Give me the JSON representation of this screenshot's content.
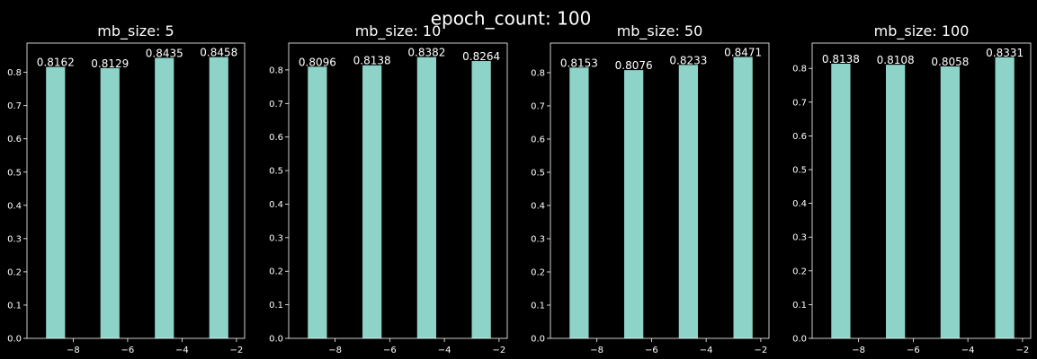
{
  "chart_data": {
    "suptitle": "epoch_count: 100",
    "colors": {
      "background": "#000000",
      "bar": "#8dd3c7",
      "axes": "#ffffff",
      "text": "#ffffff"
    },
    "panels": [
      {
        "type": "bar",
        "title": "mb_size: 5",
        "x": [
          -9,
          -7,
          -5,
          -3
        ],
        "values": [
          0.8162,
          0.8129,
          0.8435,
          0.8458
        ],
        "labels": [
          "0.8162",
          "0.8129",
          "0.8435",
          "0.8458"
        ],
        "xlim": [
          -9.7,
          -1.7
        ],
        "ylim": [
          0,
          0.888
        ],
        "xticks": [
          -8,
          -6,
          -4,
          -2
        ],
        "xtick_labels": [
          "−8",
          "−6",
          "−4",
          "−2"
        ],
        "yticks": [
          0,
          0.1,
          0.2,
          0.3,
          0.4,
          0.5,
          0.6,
          0.7,
          0.8
        ],
        "ytick_labels": [
          "0.0",
          "0.1",
          "0.2",
          "0.3",
          "0.4",
          "0.5",
          "0.6",
          "0.7",
          "0.8"
        ]
      },
      {
        "type": "bar",
        "title": "mb_size: 10",
        "x": [
          -9,
          -7,
          -5,
          -3
        ],
        "values": [
          0.8096,
          0.8138,
          0.8382,
          0.8264
        ],
        "labels": [
          "0.8096",
          "0.8138",
          "0.8382",
          "0.8264"
        ],
        "xlim": [
          -9.7,
          -1.7
        ],
        "ylim": [
          0,
          0.88
        ],
        "xticks": [
          -8,
          -6,
          -4,
          -2
        ],
        "xtick_labels": [
          "−8",
          "−6",
          "−4",
          "−2"
        ],
        "yticks": [
          0,
          0.1,
          0.2,
          0.3,
          0.4,
          0.5,
          0.6,
          0.7,
          0.8
        ],
        "ytick_labels": [
          "0.0",
          "0.1",
          "0.2",
          "0.3",
          "0.4",
          "0.5",
          "0.6",
          "0.7",
          "0.8"
        ]
      },
      {
        "type": "bar",
        "title": "mb_size: 50",
        "x": [
          -9,
          -7,
          -5,
          -3
        ],
        "values": [
          0.8153,
          0.8076,
          0.8233,
          0.8471
        ],
        "labels": [
          "0.8153",
          "0.8076",
          "0.8233",
          "0.8471"
        ],
        "xlim": [
          -9.7,
          -1.7
        ],
        "ylim": [
          0,
          0.889
        ],
        "xticks": [
          -8,
          -6,
          -4,
          -2
        ],
        "xtick_labels": [
          "−8",
          "−6",
          "−4",
          "−2"
        ],
        "yticks": [
          0,
          0.1,
          0.2,
          0.3,
          0.4,
          0.5,
          0.6,
          0.7,
          0.8
        ],
        "ytick_labels": [
          "0.0",
          "0.1",
          "0.2",
          "0.3",
          "0.4",
          "0.5",
          "0.6",
          "0.7",
          "0.8"
        ]
      },
      {
        "type": "bar",
        "title": "mb_size: 100",
        "x": [
          -9,
          -7,
          -5,
          -3
        ],
        "values": [
          0.8138,
          0.8108,
          0.8058,
          0.8331
        ],
        "labels": [
          "0.8138",
          "0.8108",
          "0.8058",
          "0.8331"
        ],
        "xlim": [
          -9.7,
          -1.7
        ],
        "ylim": [
          0,
          0.875
        ],
        "xticks": [
          -8,
          -6,
          -4,
          -2
        ],
        "xtick_labels": [
          "−8",
          "−6",
          "−4",
          "−2"
        ],
        "yticks": [
          0,
          0.1,
          0.2,
          0.3,
          0.4,
          0.5,
          0.6,
          0.7,
          0.8
        ],
        "ytick_labels": [
          "0.0",
          "0.1",
          "0.2",
          "0.3",
          "0.4",
          "0.5",
          "0.6",
          "0.7",
          "0.8"
        ]
      }
    ]
  }
}
